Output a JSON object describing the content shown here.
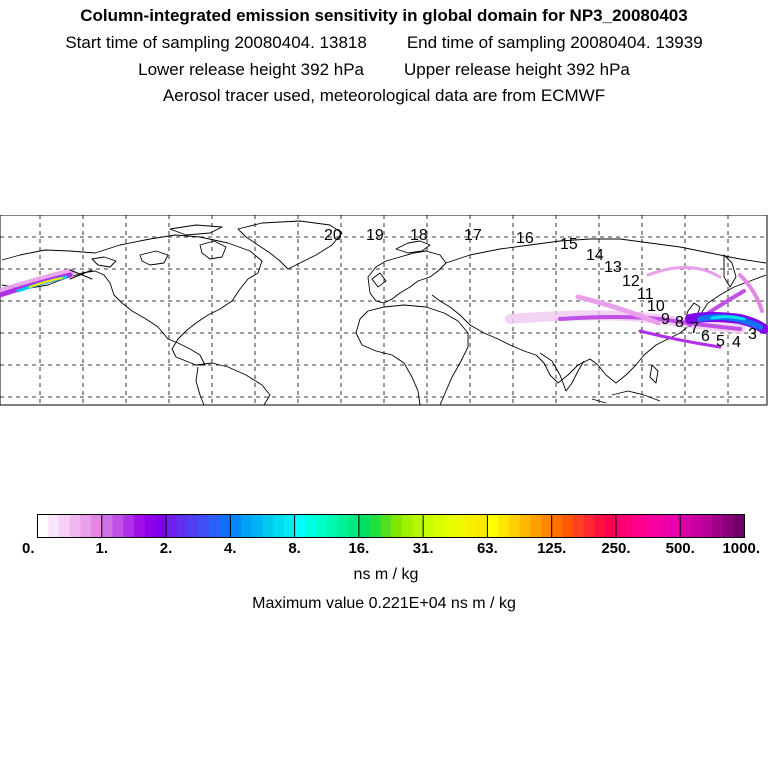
{
  "header": {
    "title": "Column-integrated emission sensitivity in global domain for NP3_20080403",
    "start_label": "Start time of sampling 20080404. 13818",
    "end_label": "End time of sampling 20080404. 13939",
    "lower_label": "Lower release height  392 hPa",
    "upper_label": "Upper release height  392 hPa",
    "tracer_label": "Aerosol tracer used, meteorological data are from ECMWF"
  },
  "map": {
    "projection": "equirectangular",
    "domain": "global",
    "grid": true,
    "trajectory_labels": [
      "20",
      "19",
      "18",
      "17",
      "16",
      "15",
      "14",
      "13",
      "12",
      "11",
      "10",
      "9",
      "8",
      "7",
      "6",
      "5",
      "4",
      "3"
    ]
  },
  "colorbar": {
    "ticks": [
      "0.",
      "1.",
      "2.",
      "4.",
      "8.",
      "16.",
      "31.",
      "63.",
      "125.",
      "250.",
      "500.",
      "1000."
    ],
    "colors": [
      [
        "#ffffff",
        "#fbe6fb",
        "#f6d0f6",
        "#f0b8f0",
        "#e9a0ea",
        "#e288e4"
      ],
      [
        "#d070e6",
        "#c050e6",
        "#b030e8",
        "#a010ea",
        "#9000ea",
        "#8000ec"
      ],
      [
        "#7020ee",
        "#6030f0",
        "#5040f4",
        "#4050f6",
        "#2860f8",
        "#1070fa"
      ],
      [
        "#0088fa",
        "#00a0f8",
        "#00b4f4",
        "#00c8f0",
        "#00daf0",
        "#00ecf0"
      ],
      [
        "#00ffff",
        "#00ffe0",
        "#00ffc8",
        "#00f8b0",
        "#00f098",
        "#00e880"
      ],
      [
        "#00e060",
        "#20e040",
        "#50e020",
        "#80e800",
        "#a0f000",
        "#b8f800"
      ],
      [
        "#c8ff00",
        "#d8ff00",
        "#e4ff00",
        "#eef800",
        "#f6f000",
        "#fce800"
      ],
      [
        "#ffff00",
        "#ffe800",
        "#ffd000",
        "#ffb800",
        "#ffa000",
        "#ff8800"
      ],
      [
        "#ff7000",
        "#ff5800",
        "#ff4020",
        "#ff2830",
        "#ff1040",
        "#ff0050"
      ],
      [
        "#ff0070",
        "#ff0080",
        "#ff0090",
        "#f800a0",
        "#f000a8",
        "#e800b0"
      ],
      [
        "#d800a8",
        "#c800a0",
        "#b80098",
        "#a00088",
        "#880078",
        "#700068"
      ]
    ],
    "units_label": "ns m / kg",
    "max_label": "Maximum value  0.221E+04 ns m / kg"
  }
}
